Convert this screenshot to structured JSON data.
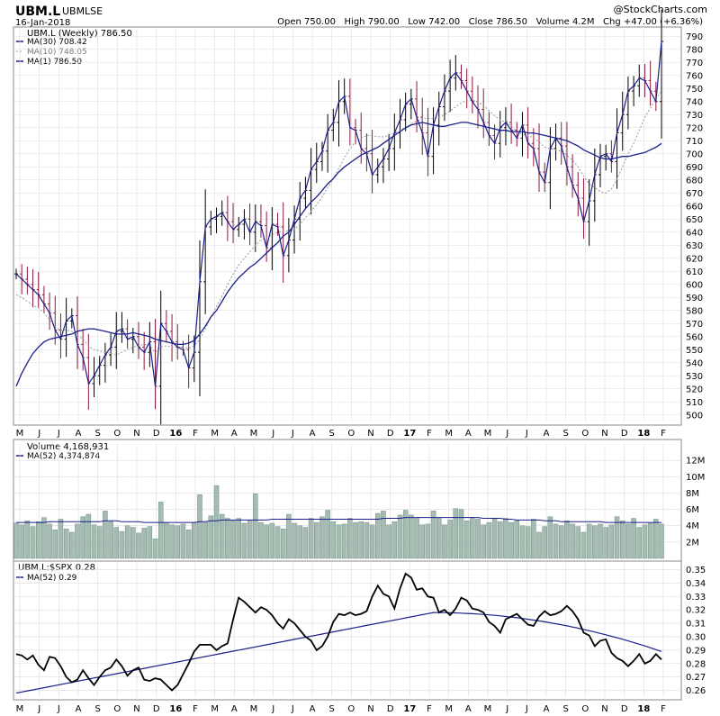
{
  "header": {
    "symbol": "UBM.L",
    "name": "UBM",
    "exchange": "LSE",
    "date": "16-Jan-2018",
    "watermark": "@StockCharts.com",
    "stats": "Open 750.00   High 790.00   Low 742.00   Close 786.50   Volume 4.2M   Chg +47.00 (+6.36%)"
  },
  "price_legend": {
    "title": "UBM.L (Weekly) 786.50",
    "ma30": "MA(30) 708.42",
    "ma10": "MA(10) 748.05",
    "ma1": "MA(1) 786.50"
  },
  "volume_legend": {
    "title": "Volume 4,168,931",
    "ma52": "MA(52) 4,374,874"
  },
  "ratio_legend": {
    "title": "UBM.L:$SPX 0.28",
    "ma52": "MA(52) 0.29"
  },
  "colors": {
    "ma30": "#1a1f8c",
    "ma10": "#999999",
    "price_up": "#000000",
    "price_down": "#8b1a3c",
    "volume": "#a6bcb2",
    "volume_edge": "#5b7f6f",
    "ratio": "#000000",
    "ratio_ma": "#1a1f8c",
    "grid": "#dddddd"
  },
  "chart_data": [
    {
      "type": "ohlc",
      "title": "UBM.L (Weekly)",
      "x_month_labels": [
        "M",
        "J",
        "J",
        "A",
        "S",
        "O",
        "N",
        "D",
        "16",
        "F",
        "M",
        "A",
        "M",
        "J",
        "J",
        "A",
        "S",
        "O",
        "N",
        "D",
        "17",
        "F",
        "M",
        "A",
        "M",
        "J",
        "J",
        "A",
        "S",
        "O",
        "N",
        "D",
        "18",
        "F"
      ],
      "y_ticks": [
        500,
        510,
        520,
        530,
        540,
        550,
        560,
        570,
        580,
        590,
        600,
        610,
        620,
        630,
        640,
        650,
        660,
        670,
        680,
        690,
        700,
        710,
        720,
        730,
        740,
        750,
        760,
        770,
        780,
        790
      ],
      "ylim": [
        495,
        795
      ],
      "close": [
        608,
        604,
        600,
        596,
        592,
        585,
        578,
        565,
        558,
        572,
        576,
        554,
        544,
        524,
        530,
        538,
        546,
        552,
        564,
        566,
        558,
        560,
        552,
        548,
        556,
        522,
        570,
        564,
        556,
        552,
        550,
        536,
        548,
        602,
        644,
        650,
        652,
        655,
        648,
        642,
        646,
        650,
        640,
        648,
        645,
        628,
        646,
        644,
        622,
        634,
        650,
        666,
        672,
        688,
        694,
        702,
        718,
        724,
        740,
        744,
        720,
        718,
        704,
        700,
        684,
        690,
        696,
        704,
        716,
        726,
        738,
        742,
        728,
        716,
        698,
        722,
        736,
        748,
        758,
        762,
        756,
        748,
        740,
        734,
        724,
        714,
        708,
        720,
        724,
        718,
        712,
        722,
        708,
        704,
        686,
        678,
        704,
        712,
        706,
        690,
        676,
        666,
        648,
        664,
        684,
        698,
        700,
        694,
        716,
        730,
        748,
        752,
        758,
        756,
        748,
        740,
        786
      ],
      "ma30": [
        522,
        532,
        540,
        547,
        552,
        556,
        558,
        559,
        560,
        561,
        562,
        564,
        565,
        566,
        566,
        565,
        564,
        563,
        562,
        562,
        562,
        563,
        562,
        561,
        560,
        558,
        557,
        556,
        555,
        554,
        554,
        555,
        557,
        562,
        568,
        575,
        580,
        587,
        594,
        600,
        605,
        609,
        613,
        616,
        620,
        624,
        628,
        632,
        637,
        640,
        646,
        652,
        658,
        663,
        667,
        672,
        677,
        681,
        686,
        690,
        693,
        696,
        699,
        701,
        703,
        705,
        708,
        711,
        714,
        717,
        720,
        722,
        723,
        724,
        723,
        722,
        721,
        721,
        722,
        723,
        724,
        724,
        723,
        722,
        721,
        720,
        719,
        718,
        718,
        717,
        717,
        717,
        716,
        716,
        715,
        714,
        713,
        712,
        711,
        710,
        708,
        706,
        703,
        701,
        699,
        697,
        696,
        696,
        697,
        698,
        698,
        699,
        700,
        701,
        703,
        705,
        708
      ],
      "ma10": [
        592,
        590,
        587,
        584,
        582,
        578,
        573,
        567,
        565,
        565,
        564,
        561,
        558,
        553,
        550,
        549,
        548,
        547,
        546,
        548,
        550,
        552,
        553,
        554,
        553,
        548,
        552,
        553,
        552,
        552,
        552,
        551,
        553,
        558,
        566,
        575,
        583,
        591,
        600,
        608,
        615,
        620,
        625,
        630,
        634,
        636,
        638,
        640,
        641,
        641,
        642,
        646,
        651,
        656,
        661,
        667,
        674,
        681,
        689,
        697,
        704,
        709,
        712,
        714,
        714,
        713,
        713,
        714,
        716,
        718,
        720,
        723,
        725,
        727,
        727,
        727,
        728,
        730,
        733,
        736,
        739,
        741,
        741,
        740,
        737,
        733,
        729,
        726,
        724,
        721,
        717,
        715,
        714,
        712,
        709,
        705,
        704,
        703,
        702,
        699,
        695,
        690,
        683,
        677,
        674,
        671,
        670,
        673,
        681,
        690,
        700,
        708,
        718,
        728,
        735,
        742,
        748
      ]
    },
    {
      "type": "bar",
      "title": "Volume",
      "y_ticks": [
        "2M",
        "4M",
        "6M",
        "8M",
        "10M",
        "12M"
      ],
      "ylim": [
        0,
        14
      ],
      "values": [
        4.3,
        4.1,
        4.6,
        3.9,
        4.5,
        5.0,
        4.2,
        3.5,
        4.8,
        3.6,
        3.2,
        4.2,
        5.1,
        5.4,
        4.1,
        3.9,
        5.8,
        4.5,
        3.8,
        3.3,
        4.0,
        3.8,
        3.1,
        3.7,
        3.9,
        2.4,
        6.9,
        4.4,
        4.1,
        4.0,
        4.2,
        3.5,
        4.4,
        7.8,
        4.4,
        5.2,
        8.9,
        5.4,
        4.9,
        4.6,
        4.9,
        4.3,
        4.7,
        7.9,
        4.4,
        4.1,
        4.3,
        3.9,
        3.6,
        5.4,
        4.3,
        4.0,
        3.8,
        4.9,
        4.4,
        5.1,
        5.9,
        4.5,
        4.1,
        4.2,
        4.9,
        4.4,
        4.5,
        4.4,
        4.1,
        5.5,
        5.8,
        4.1,
        4.5,
        5.3,
        5.9,
        5.3,
        4.9,
        4.1,
        4.2,
        5.8,
        4.9,
        4.1,
        4.7,
        6.1,
        6.0,
        4.6,
        4.9,
        4.8,
        4.1,
        4.4,
        4.8,
        4.5,
        4.9,
        4.4,
        4.6,
        4.0,
        3.9,
        4.8,
        3.2,
        3.9,
        5.1,
        4.2,
        4.0,
        4.6,
        4.2,
        3.9,
        3.2,
        4.2,
        4.0,
        4.2,
        3.8,
        4.1,
        5.1,
        4.6,
        4.2,
        4.9,
        3.8,
        4.1,
        4.3,
        4.8,
        4.2
      ],
      "ma52": [
        4.4,
        4.4,
        4.4,
        4.4,
        4.4,
        4.4,
        4.5,
        4.5,
        4.5,
        4.5,
        4.5,
        4.5,
        4.5,
        4.5,
        4.5,
        4.5,
        4.6,
        4.6,
        4.6,
        4.5,
        4.5,
        4.5,
        4.5,
        4.4,
        4.4,
        4.4,
        4.4,
        4.4,
        4.4,
        4.4,
        4.4,
        4.4,
        4.4,
        4.5,
        4.5,
        4.6,
        4.6,
        4.7,
        4.7,
        4.7,
        4.7,
        4.7,
        4.7,
        4.7,
        4.7,
        4.7,
        4.8,
        4.8,
        4.8,
        4.8,
        4.8,
        4.8,
        4.8,
        4.8,
        4.8,
        4.8,
        4.8,
        4.8,
        4.8,
        4.8,
        4.8,
        4.8,
        4.8,
        4.8,
        4.8,
        4.8,
        4.9,
        4.9,
        4.9,
        4.9,
        5.0,
        5.0,
        5.0,
        5.0,
        5.0,
        5.0,
        5.0,
        5.0,
        5.0,
        5.0,
        5.0,
        5.0,
        5.0,
        5.0,
        4.9,
        4.9,
        4.9,
        4.9,
        4.8,
        4.8,
        4.7,
        4.7,
        4.7,
        4.7,
        4.7,
        4.6,
        4.6,
        4.6,
        4.5,
        4.5,
        4.5,
        4.5,
        4.5,
        4.5,
        4.5,
        4.5,
        4.4,
        4.4,
        4.4,
        4.4,
        4.4,
        4.4,
        4.4,
        4.4,
        4.4,
        4.4,
        4.4
      ]
    },
    {
      "type": "line",
      "title": "UBM.L:$SPX",
      "y_ticks": [
        0.26,
        0.27,
        0.28,
        0.29,
        0.3,
        0.31,
        0.32,
        0.33,
        0.34,
        0.35
      ],
      "ylim": [
        0.255,
        0.355
      ],
      "values": [
        0.287,
        0.286,
        0.283,
        0.286,
        0.279,
        0.275,
        0.285,
        0.284,
        0.278,
        0.27,
        0.266,
        0.268,
        0.275,
        0.269,
        0.264,
        0.27,
        0.275,
        0.277,
        0.283,
        0.278,
        0.271,
        0.275,
        0.277,
        0.268,
        0.267,
        0.269,
        0.268,
        0.264,
        0.26,
        0.264,
        0.272,
        0.28,
        0.289,
        0.294,
        0.294,
        0.294,
        0.29,
        0.293,
        0.295,
        0.313,
        0.329,
        0.326,
        0.322,
        0.318,
        0.322,
        0.32,
        0.316,
        0.31,
        0.306,
        0.313,
        0.31,
        0.305,
        0.3,
        0.297,
        0.29,
        0.293,
        0.3,
        0.311,
        0.317,
        0.316,
        0.318,
        0.316,
        0.317,
        0.319,
        0.33,
        0.338,
        0.332,
        0.33,
        0.321,
        0.336,
        0.347,
        0.344,
        0.335,
        0.336,
        0.33,
        0.329,
        0.318,
        0.32,
        0.316,
        0.321,
        0.329,
        0.327,
        0.321,
        0.32,
        0.318,
        0.311,
        0.308,
        0.303,
        0.313,
        0.315,
        0.317,
        0.313,
        0.309,
        0.308,
        0.315,
        0.319,
        0.316,
        0.317,
        0.319,
        0.323,
        0.319,
        0.313,
        0.303,
        0.301,
        0.293,
        0.297,
        0.298,
        0.288,
        0.284,
        0.282,
        0.278,
        0.282,
        0.287,
        0.28,
        0.282,
        0.287,
        0.283
      ]
    }
  ]
}
